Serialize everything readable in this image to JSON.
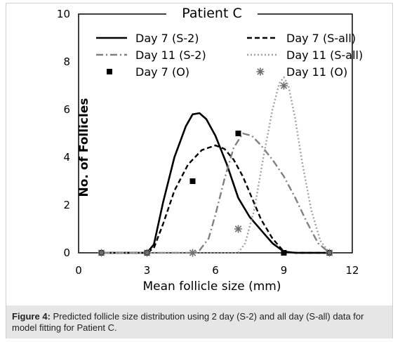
{
  "caption": {
    "label": "Figure 4:",
    "text": " Predicted follicle size distribution using 2 day (S-2) and all day (S-all) data for model fitting for Patient C."
  },
  "chart_data": {
    "type": "line",
    "title": "Patient C",
    "xlabel": "Mean follicle size (mm)",
    "ylabel": "No. of Follicles",
    "xlim": [
      0,
      12
    ],
    "ylim": [
      0,
      10
    ],
    "xticks": [
      0,
      3,
      6,
      9,
      12
    ],
    "yticks": [
      0,
      2,
      4,
      6,
      8,
      10
    ],
    "grid": false,
    "legend_position": "top",
    "series": [
      {
        "name": "Day 7 (S-2)",
        "style": "solid",
        "color": "#000000",
        "x": [
          1,
          3,
          3.3,
          3.7,
          4.2,
          4.7,
          5.0,
          5.3,
          5.6,
          6.0,
          6.5,
          7.0,
          7.5,
          8.0,
          8.5,
          9.0,
          9.5,
          11
        ],
        "y": [
          0,
          0,
          0.35,
          2.1,
          4.0,
          5.3,
          5.8,
          5.85,
          5.6,
          4.9,
          3.7,
          2.3,
          1.5,
          0.95,
          0.4,
          0.05,
          0,
          0
        ]
      },
      {
        "name": "Day 7 (S-all)",
        "style": "dashed",
        "color": "#000000",
        "x": [
          1,
          3,
          3.3,
          3.7,
          4.2,
          4.8,
          5.4,
          6.0,
          6.4,
          6.8,
          7.2,
          7.6,
          8.0,
          8.5,
          9.0,
          9.5,
          11
        ],
        "y": [
          0,
          0,
          0.2,
          1.2,
          2.6,
          3.7,
          4.3,
          4.5,
          4.35,
          3.9,
          3.2,
          2.3,
          1.4,
          0.6,
          0.05,
          0,
          0
        ]
      },
      {
        "name": "Day 11 (S-2)",
        "style": "dashdot",
        "color": "#808080",
        "x": [
          1,
          5,
          5.3,
          5.7,
          6.0,
          6.4,
          6.8,
          7.2,
          7.6,
          8.0,
          8.5,
          9.0,
          9.5,
          10.0,
          10.5,
          11
        ],
        "y": [
          0,
          0,
          0.1,
          0.6,
          1.6,
          3.1,
          4.4,
          5.0,
          4.9,
          4.5,
          3.9,
          3.2,
          2.3,
          1.3,
          0.4,
          0
        ]
      },
      {
        "name": "Day 11 (S-all)",
        "style": "dotted",
        "color": "#a0a0a0",
        "x": [
          1,
          7,
          7.3,
          7.7,
          8.1,
          8.5,
          8.8,
          9.0,
          9.2,
          9.5,
          9.8,
          10.2,
          10.6,
          11
        ],
        "y": [
          0,
          0,
          0.4,
          1.8,
          4.0,
          6.0,
          7.1,
          7.35,
          7.0,
          5.6,
          3.8,
          1.8,
          0.5,
          0
        ]
      },
      {
        "name": "Day 7 (O)",
        "style": "marker-square",
        "color": "#000000",
        "x": [
          1,
          3,
          5,
          7,
          9,
          11
        ],
        "y": [
          0,
          0,
          3,
          5,
          0,
          0
        ]
      },
      {
        "name": "Day 11 (O)",
        "style": "marker-star",
        "color": "#707070",
        "x": [
          1,
          3,
          5,
          7,
          9,
          11
        ],
        "y": [
          0,
          0,
          0,
          1,
          7,
          0
        ]
      }
    ]
  }
}
